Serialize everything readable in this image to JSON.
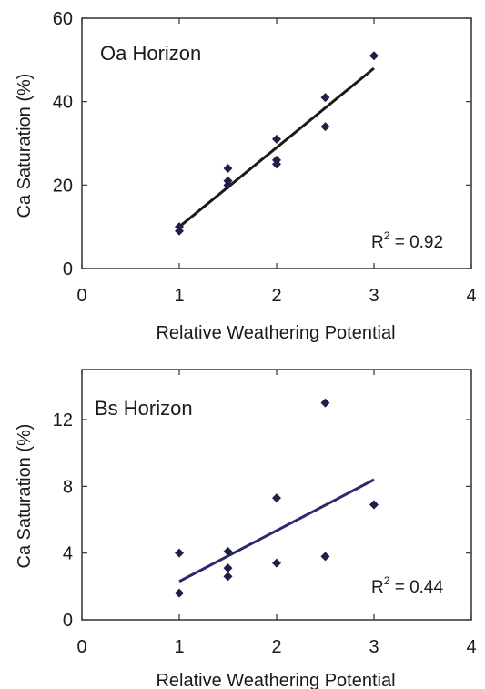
{
  "chart_data": [
    {
      "type": "scatter",
      "title": "Oa Horizon",
      "xlabel": "Relative Weathering Potential",
      "ylabel": "Ca Saturation (%)",
      "xlim": [
        0,
        4
      ],
      "ylim": [
        0,
        60
      ],
      "xticks": [
        "0",
        "1",
        "2",
        "3",
        "4"
      ],
      "yticks": [
        "0",
        "20",
        "40",
        "60"
      ],
      "annotation": {
        "base": "R",
        "sup": "2",
        "value": " = 0.92"
      },
      "series": [
        {
          "x": [
            1,
            1,
            1.5,
            1.5,
            1.5,
            2,
            2,
            2,
            2.5,
            2.5,
            3
          ],
          "y": [
            10,
            9,
            24,
            21,
            20,
            31,
            26,
            25,
            41,
            34,
            51
          ],
          "marker_color": "#1f1f4a"
        }
      ],
      "fit_line": {
        "x": [
          1,
          3
        ],
        "y": [
          10,
          48
        ],
        "color": "#1a1a1a"
      }
    },
    {
      "type": "scatter",
      "title": "Bs Horizon",
      "xlabel": "Relative Weathering Potential",
      "ylabel": "Ca Saturation (%)",
      "xlim": [
        0,
        4
      ],
      "ylim": [
        0,
        15
      ],
      "xticks": [
        "0",
        "1",
        "2",
        "3",
        "4"
      ],
      "yticks": [
        "0",
        "4",
        "8",
        "12"
      ],
      "annotation": {
        "base": "R",
        "sup": "2",
        "value": " = 0.44"
      },
      "series": [
        {
          "x": [
            1,
            1,
            1.5,
            1.5,
            1.5,
            2,
            2,
            2.5,
            2.5,
            3
          ],
          "y": [
            4,
            1.6,
            4.1,
            3.1,
            2.6,
            7.3,
            3.4,
            13,
            3.8,
            6.9
          ],
          "marker_color": "#1f1f4a"
        }
      ],
      "fit_line": {
        "x": [
          1,
          3
        ],
        "y": [
          2.3,
          8.4
        ],
        "color": "#2a2a6e"
      }
    }
  ]
}
